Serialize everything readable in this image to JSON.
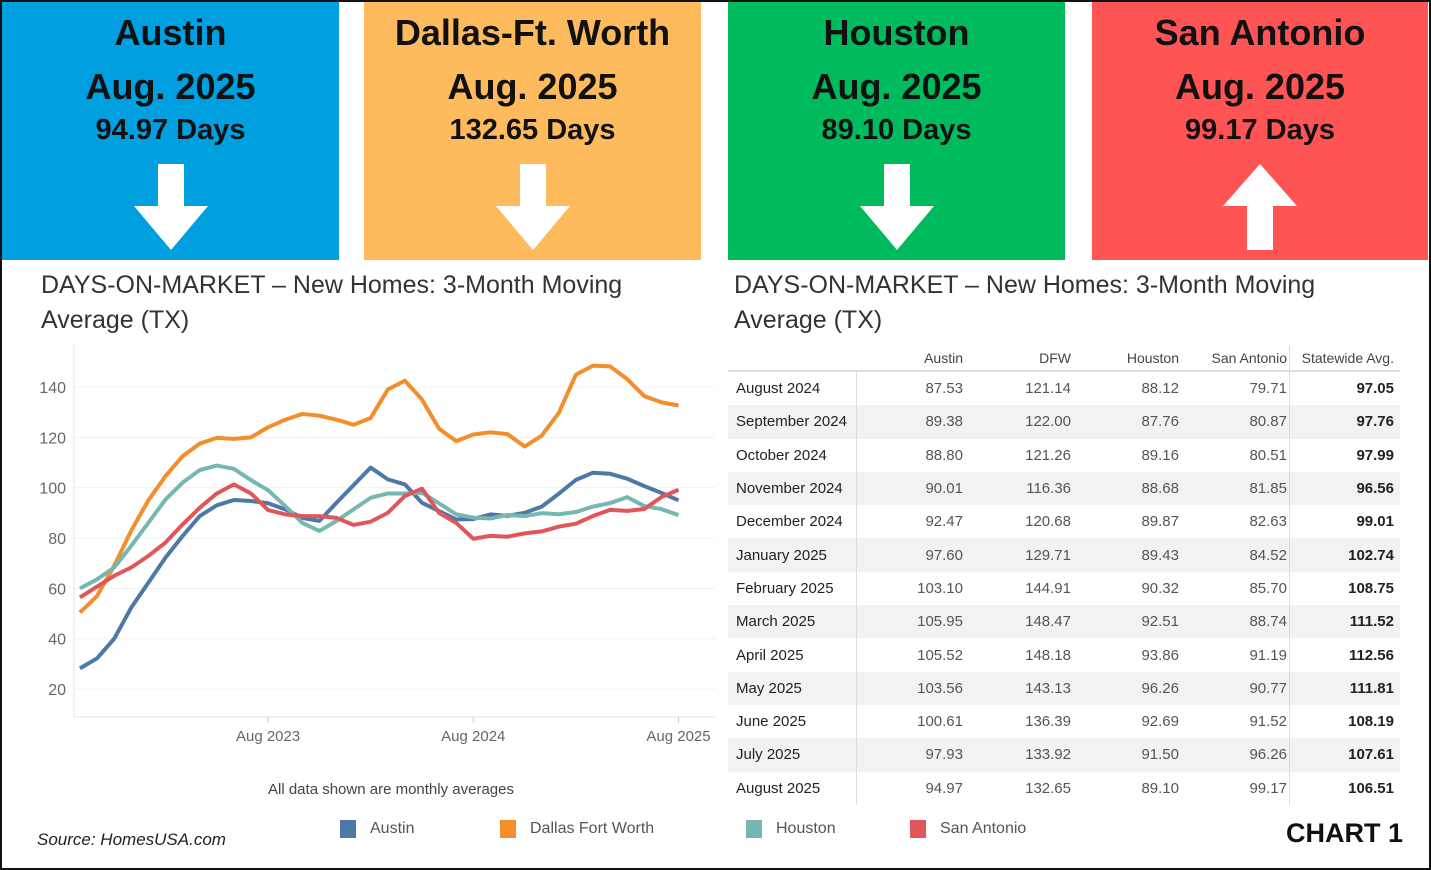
{
  "cards": [
    {
      "city": "Austin",
      "period": "Aug. 2025",
      "days": "94.97 Days",
      "trend": "down",
      "color": "#009fe0"
    },
    {
      "city": "Dallas-Ft. Worth",
      "period": "Aug. 2025",
      "days": "132.65 Days",
      "trend": "down",
      "color": "#fdbb5d"
    },
    {
      "city": "Houston",
      "period": "Aug. 2025",
      "days": "89.10 Days",
      "trend": "down",
      "color": "#00bb5e"
    },
    {
      "city": "San Antonio",
      "period": "Aug. 2025",
      "days": "99.17 Days",
      "trend": "up",
      "color": "#ff5454"
    }
  ],
  "chart_title": "DAYS-ON-MARKET – New Homes: 3-Month Moving Average (TX)",
  "table_title": "DAYS-ON-MARKET – New Homes:  3-Month Moving Average (TX)",
  "note": "All data shown are monthly averages",
  "source": "Source: HomesUSA.com",
  "chart_label": "CHART 1",
  "chart_data": {
    "type": "line",
    "x_start": "Sep 2022",
    "x_end": "Aug 2025",
    "x_ticks": [
      "Aug 2023",
      "Aug 2024",
      "Aug 2025"
    ],
    "y_ticks": [
      20,
      40,
      60,
      80,
      100,
      120,
      140
    ],
    "ylim": [
      10,
      150
    ],
    "grid": true,
    "legend": "bottom",
    "series": [
      {
        "name": "Austin",
        "color": "#4e79a7",
        "values": [
          28.2,
          32.2,
          40,
          52.4,
          62.3,
          72.2,
          80.8,
          88.7,
          93,
          95.1,
          94.7,
          93.8,
          91.4,
          88,
          86.8,
          94,
          101,
          108,
          103.3,
          101.3,
          94,
          90.7,
          87.4,
          87.53,
          89.38,
          88.8,
          90.01,
          92.47,
          97.6,
          103.1,
          105.95,
          105.52,
          103.56,
          100.61,
          97.93,
          94.97
        ]
      },
      {
        "name": "Dallas Fort Worth",
        "color": "#f28e2b",
        "values": [
          50.4,
          57,
          69,
          83,
          95,
          104.6,
          112.5,
          117.5,
          119.8,
          119.4,
          120,
          124,
          127,
          129.3,
          128.6,
          127,
          125,
          127.7,
          139,
          142.5,
          135,
          123.4,
          118.5,
          121.14,
          122.0,
          121.26,
          116.36,
          120.68,
          129.71,
          144.91,
          148.47,
          148.18,
          143.13,
          136.39,
          133.92,
          132.65
        ]
      },
      {
        "name": "Houston",
        "color": "#76b7b2",
        "values": [
          60,
          63.6,
          68.3,
          76.9,
          86.1,
          95.3,
          102,
          107,
          108.8,
          107.5,
          103,
          99,
          92.7,
          86,
          82.8,
          86.8,
          91.4,
          96,
          97.7,
          97.7,
          98,
          93.8,
          89.4,
          88.12,
          87.76,
          89.16,
          88.68,
          89.87,
          89.43,
          90.32,
          92.51,
          93.86,
          96.26,
          92.69,
          91.5,
          89.1
        ]
      },
      {
        "name": "San Antonio",
        "color": "#e15759",
        "values": [
          56.4,
          60.7,
          65,
          68.3,
          72.9,
          78.2,
          85.4,
          92,
          97.7,
          101.3,
          97.7,
          91.1,
          89.4,
          88.7,
          88.7,
          88,
          85.2,
          86.5,
          90,
          96.7,
          99.6,
          90,
          86,
          79.71,
          80.87,
          80.51,
          81.85,
          82.63,
          84.52,
          85.7,
          88.74,
          91.19,
          90.77,
          91.52,
          96.26,
          99.17
        ]
      }
    ]
  },
  "table": {
    "headers": [
      "",
      "Austin",
      "DFW",
      "Houston",
      "San Antonio",
      "Statewide Avg."
    ],
    "rows": [
      [
        "August 2024",
        "87.53",
        "121.14",
        "88.12",
        "79.71",
        "97.05"
      ],
      [
        "September 2024",
        "89.38",
        "122.00",
        "87.76",
        "80.87",
        "97.76"
      ],
      [
        "October 2024",
        "88.80",
        "121.26",
        "89.16",
        "80.51",
        "97.99"
      ],
      [
        "November 2024",
        "90.01",
        "116.36",
        "88.68",
        "81.85",
        "96.56"
      ],
      [
        "December 2024",
        "92.47",
        "120.68",
        "89.87",
        "82.63",
        "99.01"
      ],
      [
        "January 2025",
        "97.60",
        "129.71",
        "89.43",
        "84.52",
        "102.74"
      ],
      [
        "February 2025",
        "103.10",
        "144.91",
        "90.32",
        "85.70",
        "108.75"
      ],
      [
        "March 2025",
        "105.95",
        "148.47",
        "92.51",
        "88.74",
        "111.52"
      ],
      [
        "April 2025",
        "105.52",
        "148.18",
        "93.86",
        "91.19",
        "112.56"
      ],
      [
        "May 2025",
        "103.56",
        "143.13",
        "96.26",
        "90.77",
        "111.81"
      ],
      [
        "June 2025",
        "100.61",
        "136.39",
        "92.69",
        "91.52",
        "108.19"
      ],
      [
        "July 2025",
        "97.93",
        "133.92",
        "91.50",
        "96.26",
        "107.61"
      ],
      [
        "August 2025",
        "94.97",
        "132.65",
        "89.10",
        "99.17",
        "106.51"
      ]
    ]
  }
}
